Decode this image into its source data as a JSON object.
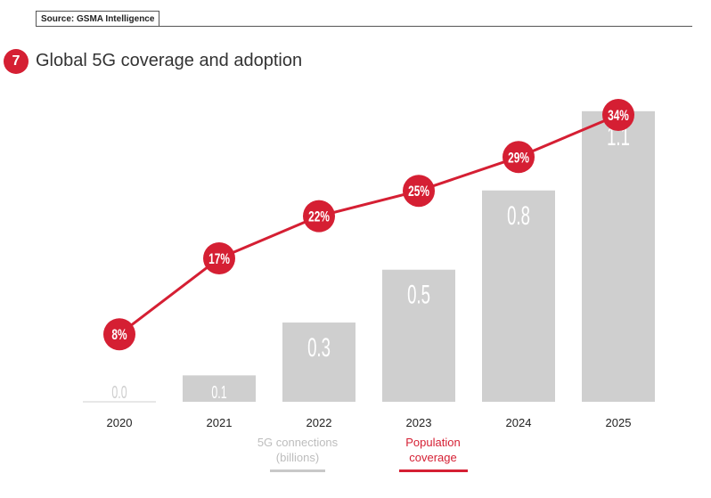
{
  "header": {
    "source": "Source: GSMA Intelligence",
    "figure_number": "7",
    "title": "Global 5G coverage and adoption"
  },
  "colors": {
    "bar": "#cfcfcf",
    "bar_label": "#ffffff",
    "line": "#d51f33",
    "marker": "#d51f33",
    "marker_text": "#ffffff",
    "axis_text": "#222222"
  },
  "chart_data": {
    "type": "bar",
    "categories": [
      "2020",
      "2021",
      "2022",
      "2023",
      "2024",
      "2025"
    ],
    "series": [
      {
        "name": "5G connections (billions)",
        "type": "bar",
        "values": [
          0.0,
          0.1,
          0.3,
          0.5,
          0.8,
          1.1
        ],
        "labels": [
          "0.0",
          "0.1",
          "0.3",
          "0.5",
          "0.8",
          "1.1"
        ]
      },
      {
        "name": "Population coverage",
        "type": "line",
        "values": [
          8,
          17,
          22,
          25,
          29,
          34
        ],
        "labels": [
          "8%",
          "17%",
          "22%",
          "25%",
          "29%",
          "34%"
        ]
      }
    ],
    "ylim": [
      0,
      1.15
    ],
    "y2lim": [
      0,
      36
    ],
    "grid": false,
    "legend_placement": "bottom-center"
  },
  "legend": {
    "bars_label_line1": "5G connections",
    "bars_label_line2": "(billions)",
    "line_label_line1": "Population",
    "line_label_line2": "coverage"
  }
}
